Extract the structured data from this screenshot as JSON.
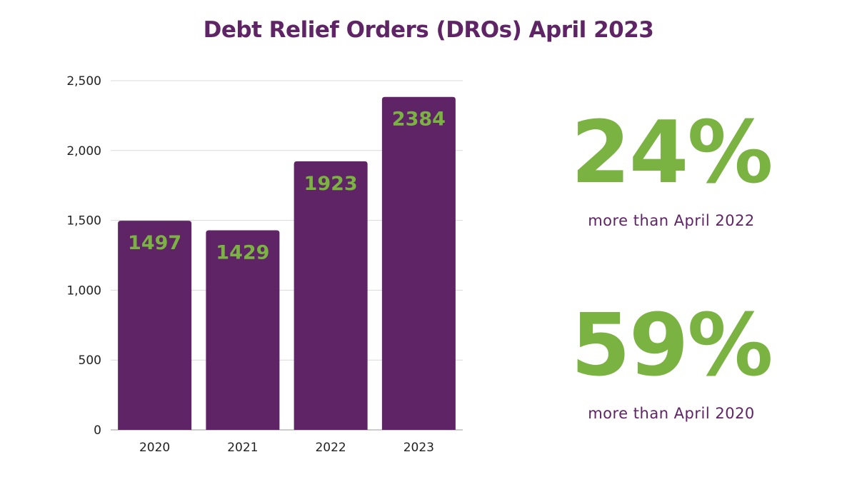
{
  "title": "Debt Relief Orders (DROs) April 2023",
  "chart_data": {
    "type": "bar",
    "categories": [
      "2020",
      "2021",
      "2022",
      "2023"
    ],
    "values": [
      1497,
      1429,
      1923,
      2384
    ],
    "data_labels": [
      "1497",
      "1429",
      "1923",
      "2384"
    ],
    "yticks": [
      "0",
      "500",
      "1,000",
      "1,500",
      "2,000",
      "2,500"
    ],
    "ytick_values": [
      0,
      500,
      1000,
      1500,
      2000,
      2500
    ],
    "ylim": [
      0,
      2500
    ],
    "grid": true,
    "bar_color": "#5f2466",
    "label_color": "#7ab342"
  },
  "stats": [
    {
      "value": "24%",
      "caption": "more than April 2022"
    },
    {
      "value": "59%",
      "caption": "more than April 2020"
    }
  ],
  "colors": {
    "title": "#5f2466",
    "accent": "#7ab342",
    "bar": "#5f2466"
  }
}
